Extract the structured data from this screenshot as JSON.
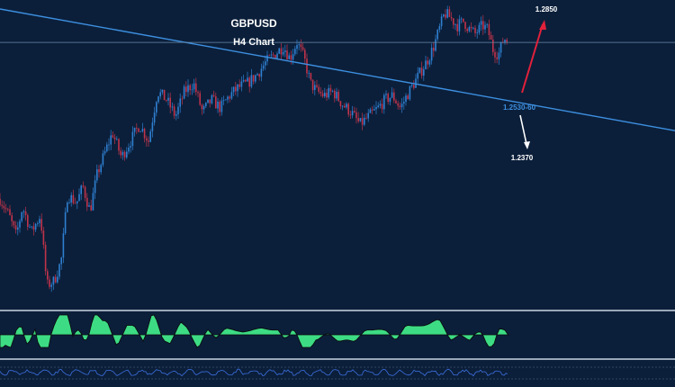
{
  "title": "GBPUSD",
  "subtitle": "H4 Chart",
  "colors": {
    "background": "#0b1f3a",
    "trendline": "#3d8fe0",
    "bull_candle": "#2f7fd0",
    "bear_candle": "#c0334a",
    "up_arrow": "#e0213b",
    "down_arrow": "#ffffff",
    "macd_fill": "#3ddc84",
    "separator": "#9aa7b8"
  },
  "annotations": {
    "upper_target": "1.2850",
    "pivot_zone": "1.2530-60",
    "lower_target": "1.2370"
  },
  "chart_data": {
    "type": "candlestick",
    "symbol": "GBPUSD",
    "timeframe": "H4",
    "y_range": [
      1.218,
      1.29
    ],
    "close_path": [
      [
        0,
        1.244
      ],
      [
        10,
        1.24
      ],
      [
        18,
        1.235
      ],
      [
        25,
        1.242
      ],
      [
        35,
        1.236
      ],
      [
        45,
        1.24
      ],
      [
        52,
        1.223
      ],
      [
        60,
        1.224
      ],
      [
        68,
        1.229
      ],
      [
        75,
        1.245
      ],
      [
        85,
        1.243
      ],
      [
        92,
        1.247
      ],
      [
        100,
        1.241
      ],
      [
        108,
        1.25
      ],
      [
        118,
        1.256
      ],
      [
        125,
        1.26
      ],
      [
        135,
        1.254
      ],
      [
        145,
        1.258
      ],
      [
        155,
        1.262
      ],
      [
        165,
        1.258
      ],
      [
        175,
        1.27
      ],
      [
        185,
        1.268
      ],
      [
        195,
        1.264
      ],
      [
        205,
        1.27
      ],
      [
        215,
        1.272
      ],
      [
        225,
        1.265
      ],
      [
        235,
        1.268
      ],
      [
        245,
        1.266
      ],
      [
        255,
        1.269
      ],
      [
        265,
        1.271
      ],
      [
        275,
        1.272
      ],
      [
        285,
        1.274
      ],
      [
        295,
        1.277
      ],
      [
        305,
        1.279
      ],
      [
        315,
        1.281
      ],
      [
        322,
        1.278
      ],
      [
        330,
        1.282
      ],
      [
        338,
        1.278
      ],
      [
        345,
        1.272
      ],
      [
        352,
        1.27
      ],
      [
        360,
        1.269
      ],
      [
        370,
        1.27
      ],
      [
        380,
        1.267
      ],
      [
        390,
        1.265
      ],
      [
        400,
        1.262
      ],
      [
        410,
        1.264
      ],
      [
        420,
        1.266
      ],
      [
        428,
        1.268
      ],
      [
        436,
        1.269
      ],
      [
        445,
        1.266
      ],
      [
        452,
        1.269
      ],
      [
        460,
        1.272
      ],
      [
        468,
        1.275
      ],
      [
        476,
        1.278
      ],
      [
        482,
        1.281
      ],
      [
        488,
        1.285
      ],
      [
        494,
        1.289
      ],
      [
        500,
        1.288
      ],
      [
        508,
        1.286
      ],
      [
        515,
        1.287
      ],
      [
        522,
        1.285
      ],
      [
        528,
        1.284
      ],
      [
        536,
        1.286
      ],
      [
        542,
        1.285
      ],
      [
        548,
        1.28
      ],
      [
        554,
        1.279
      ],
      [
        560,
        1.283
      ],
      [
        565,
        1.282
      ]
    ],
    "trendline_values": [
      1.29,
      1.2605
    ],
    "horizontal_level": 1.2819,
    "levels": [
      "1.2850",
      "1.2530-60",
      "1.2370"
    ]
  }
}
